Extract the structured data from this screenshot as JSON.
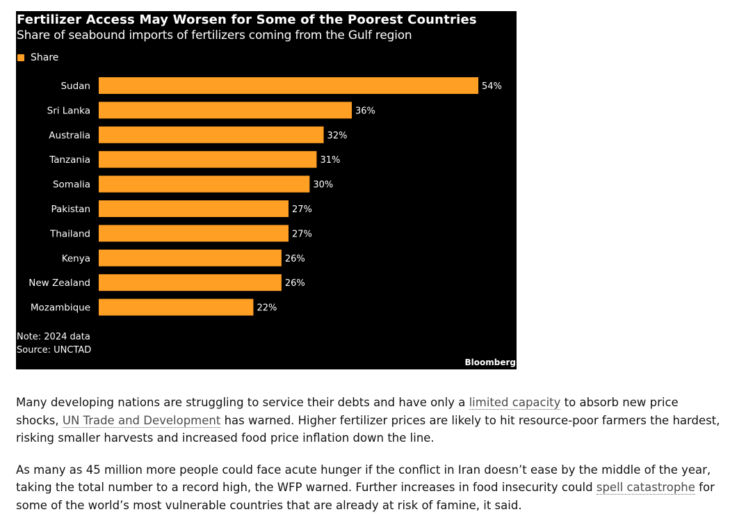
{
  "chart_data": {
    "type": "bar",
    "orientation": "horizontal",
    "title": "Fertilizer Access May Worsen for Some of the Poorest Countries",
    "subtitle": "Share of seabound imports of fertilizers coming from the Gulf region",
    "legend": [
      {
        "label": "Share",
        "color": "#ff9f24"
      }
    ],
    "categories": [
      "Sudan",
      "Sri Lanka",
      "Australia",
      "Tanzania",
      "Somalia",
      "Pakistan",
      "Thailand",
      "Kenya",
      "New Zealand",
      "Mozambique"
    ],
    "values": [
      54,
      36,
      32,
      31,
      30,
      27,
      27,
      26,
      26,
      22
    ],
    "value_labels": [
      "54%",
      "36%",
      "32%",
      "31%",
      "30%",
      "27%",
      "27%",
      "26%",
      "26%",
      "22%"
    ],
    "unit": "%",
    "xlim": [
      0,
      60
    ],
    "grid": false,
    "note": "Note: 2024 data",
    "source": "Source: UNCTAD",
    "brand": "Bloomberg"
  },
  "colors": {
    "bar": "#ff9f24",
    "chart_background": "#000000",
    "chart_text": "#ffffff"
  },
  "article": {
    "p1": {
      "before_link1": "Many developing nations are struggling to service their debts and have only a ",
      "link1": "limited capacity",
      "between": " to absorb new price shocks, ",
      "link2": "UN Trade and Development",
      "after": " has warned. Higher fertilizer prices are likely to hit resource-poor farmers the hardest, risking smaller harvests and increased food price inflation down the line."
    },
    "p2": {
      "text": "As many as 45 million more people could face acute hunger if the conflict in Iran doesn’t ease by the middle of the year, taking the total number to a record high, the WFP warned. Further increases in food insecurity could ",
      "link": "spell catastrophe",
      "after": " for some of the world’s most vulnerable countries that are already at risk of famine, it said."
    }
  }
}
